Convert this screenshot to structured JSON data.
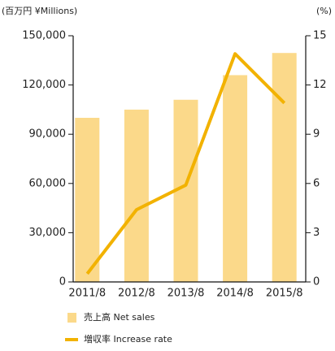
{
  "chart_data": {
    "type": "bar_line",
    "y_label": "(百万円 ¥Millions)",
    "y2_label": "(%)",
    "categories": [
      "2011/8",
      "2012/8",
      "2013/8",
      "2014/8",
      "2015/8"
    ],
    "series": [
      {
        "name": "売上高 Net sales",
        "type": "bar",
        "color": "#fbd98a",
        "values": [
          100000,
          105000,
          111000,
          126000,
          139500
        ]
      },
      {
        "name": "増収率 Increase rate",
        "type": "line",
        "axis": "y2",
        "color": "#f2b200",
        "values": [
          0.5,
          4.4,
          5.9,
          13.9,
          10.9
        ]
      }
    ],
    "ylim": [
      0,
      150000
    ],
    "yticks": [
      0,
      {
        "value": 30000,
        "label": "30,000"
      },
      {
        "value": 60000,
        "label": "60,000"
      },
      {
        "value": 90000,
        "label": "90,000"
      },
      {
        "value": 120000,
        "label": "120,000"
      },
      {
        "value": 150000,
        "label": "150,000"
      }
    ],
    "y2lim": [
      0,
      15
    ],
    "y2ticks": [
      0,
      3,
      6,
      9,
      12,
      15
    ]
  }
}
